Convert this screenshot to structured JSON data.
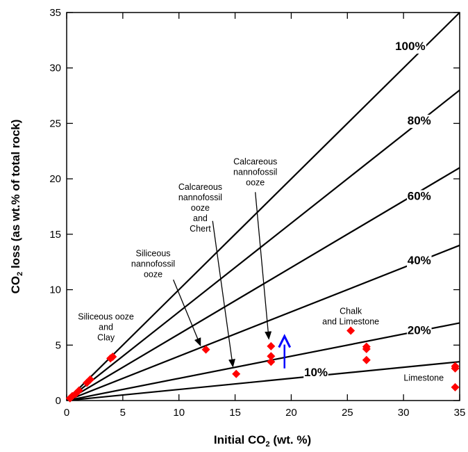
{
  "chart_data": {
    "type": "scatter",
    "xlabel": {
      "main": "Initial CO",
      "sub": "2",
      "rest": " (wt. %)"
    },
    "ylabel": {
      "main": "CO",
      "sub": "2",
      "rest": " loss (as wt.% of total rock)"
    },
    "xlim": [
      0,
      35
    ],
    "ylim": [
      0,
      35
    ],
    "xticks": [
      0,
      5,
      10,
      15,
      20,
      25,
      30,
      35
    ],
    "yticks": [
      0,
      5,
      10,
      15,
      20,
      25,
      30,
      35
    ],
    "grid": false,
    "marker_color": "#ff0000",
    "arrow_color": "#0000ff",
    "reference_lines": [
      {
        "slope": 1.0,
        "label": "100%",
        "label_pos": [
          30.6,
          31.6
        ]
      },
      {
        "slope": 0.8,
        "label": "80%",
        "label_pos": [
          31.4,
          24.9
        ]
      },
      {
        "slope": 0.6,
        "label": "60%",
        "label_pos": [
          31.4,
          18.1
        ]
      },
      {
        "slope": 0.4,
        "label": "40%",
        "label_pos": [
          31.4,
          12.3
        ]
      },
      {
        "slope": 0.2,
        "label": "20%",
        "label_pos": [
          31.4,
          6.0
        ]
      },
      {
        "slope": 0.1,
        "label": "10%",
        "label_pos": [
          22.2,
          2.2
        ]
      }
    ],
    "points": [
      {
        "x": 0.3,
        "y": 0.2
      },
      {
        "x": 0.5,
        "y": 0.4
      },
      {
        "x": 0.8,
        "y": 0.6
      },
      {
        "x": 1.1,
        "y": 0.9
      },
      {
        "x": 1.8,
        "y": 1.6
      },
      {
        "x": 2.1,
        "y": 1.9
      },
      {
        "x": 3.9,
        "y": 3.8
      },
      {
        "x": 4.1,
        "y": 3.95
      },
      {
        "x": 12.4,
        "y": 4.6
      },
      {
        "x": 15.1,
        "y": 2.4
      },
      {
        "x": 18.2,
        "y": 4.9
      },
      {
        "x": 18.2,
        "y": 4.0
      },
      {
        "x": 18.2,
        "y": 3.5
      },
      {
        "x": 25.3,
        "y": 6.3
      },
      {
        "x": 26.7,
        "y": 4.85
      },
      {
        "x": 26.7,
        "y": 4.65
      },
      {
        "x": 26.7,
        "y": 3.65
      },
      {
        "x": 34.6,
        "y": 3.1
      },
      {
        "x": 34.6,
        "y": 2.9
      },
      {
        "x": 34.6,
        "y": 1.2
      }
    ],
    "trend_arrow": {
      "x": 19.4,
      "y_from": 2.9,
      "y_to": 5.8
    },
    "annotations": [
      {
        "lines": [
          "Siliceous ooze",
          "and",
          "Clay"
        ],
        "pos": [
          3.5,
          7.3
        ]
      },
      {
        "lines": [
          "Siliceous",
          "nannofossil",
          "ooze"
        ],
        "pos": [
          7.7,
          13.0
        ],
        "arrow_from": [
          9.5,
          10.9
        ],
        "arrow_to": [
          11.9,
          5.0
        ]
      },
      {
        "lines": [
          "Calcareous",
          "nannofossil",
          "ooze",
          "and",
          "Chert"
        ],
        "pos": [
          11.9,
          19.0
        ],
        "arrow_from": [
          13.0,
          16.2
        ],
        "arrow_to": [
          14.8,
          3.1
        ]
      },
      {
        "lines": [
          "Calcareous",
          "nannofossil",
          "ooze"
        ],
        "pos": [
          16.8,
          21.3
        ],
        "arrow_from": [
          16.8,
          18.8
        ],
        "arrow_to": [
          18.0,
          5.6
        ]
      },
      {
        "lines": [
          "Chalk",
          "and Limestone"
        ],
        "pos": [
          25.3,
          7.8
        ]
      },
      {
        "lines": [
          "Limestone"
        ],
        "pos": [
          31.8,
          1.8
        ]
      }
    ]
  }
}
